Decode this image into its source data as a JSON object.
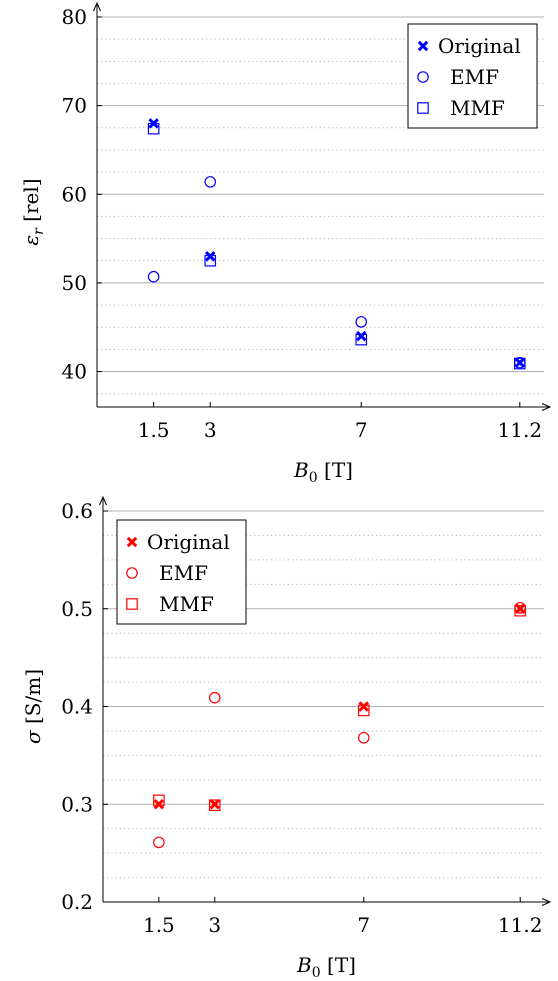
{
  "chart_data": [
    {
      "type": "scatter",
      "title": "",
      "xlabel": "B_0 [T]",
      "xlabel_main": "B",
      "xlabel_sub": "0",
      "xlabel_unit": "[T]",
      "ylabel": "ε_r [rel]",
      "ylabel_main": "ε",
      "ylabel_sub": "r",
      "ylabel_unit": "[rel]",
      "x_ticks": [
        1.5,
        3,
        7,
        11.2
      ],
      "x_tick_labels": [
        "1.5",
        "3",
        "7",
        "11.2"
      ],
      "xlim": [
        0,
        12
      ],
      "y_ticks": [
        40,
        50,
        60,
        70,
        80
      ],
      "y_tick_labels": [
        "40",
        "50",
        "60",
        "70",
        "80"
      ],
      "ylim": [
        36,
        80
      ],
      "grid": true,
      "legend_position": "top-right",
      "color": "#0000ff",
      "series": [
        {
          "name": "Original",
          "marker": "x",
          "x": [
            1.5,
            3,
            7,
            11.2
          ],
          "y": [
            68.0,
            53.0,
            44.0,
            41.0
          ]
        },
        {
          "name": "EMF",
          "marker": "circle",
          "x": [
            1.5,
            3,
            7,
            11.2
          ],
          "y": [
            50.7,
            61.4,
            45.6,
            41.0
          ]
        },
        {
          "name": "MMF",
          "marker": "square",
          "x": [
            1.5,
            3,
            7,
            11.2
          ],
          "y": [
            67.4,
            52.5,
            43.6,
            40.9
          ]
        }
      ]
    },
    {
      "type": "scatter",
      "title": "",
      "xlabel": "B_0 [T]",
      "xlabel_main": "B",
      "xlabel_sub": "0",
      "xlabel_unit": "[T]",
      "ylabel": "σ [S/m]",
      "ylabel_main": "σ",
      "ylabel_sub": "",
      "ylabel_unit": "[S/m]",
      "x_ticks": [
        1.5,
        3,
        7,
        11.2
      ],
      "x_tick_labels": [
        "1.5",
        "3",
        "7",
        "11.2"
      ],
      "xlim": [
        0,
        12
      ],
      "y_ticks": [
        0.2,
        0.3,
        0.4,
        0.5,
        0.6
      ],
      "y_tick_labels": [
        "0.2",
        "0.3",
        "0.4",
        "0.5",
        "0.6"
      ],
      "ylim": [
        0.2,
        0.6
      ],
      "grid": true,
      "legend_position": "top-left",
      "color": "#ff0000",
      "series": [
        {
          "name": "Original",
          "marker": "x",
          "x": [
            1.5,
            3,
            7,
            11.2
          ],
          "y": [
            0.3,
            0.3,
            0.4,
            0.5
          ]
        },
        {
          "name": "EMF",
          "marker": "circle",
          "x": [
            1.5,
            3,
            7,
            11.2
          ],
          "y": [
            0.261,
            0.409,
            0.368,
            0.501
          ]
        },
        {
          "name": "MMF",
          "marker": "square",
          "x": [
            1.5,
            3,
            7,
            11.2
          ],
          "y": [
            0.304,
            0.299,
            0.396,
            0.498
          ]
        }
      ]
    }
  ]
}
